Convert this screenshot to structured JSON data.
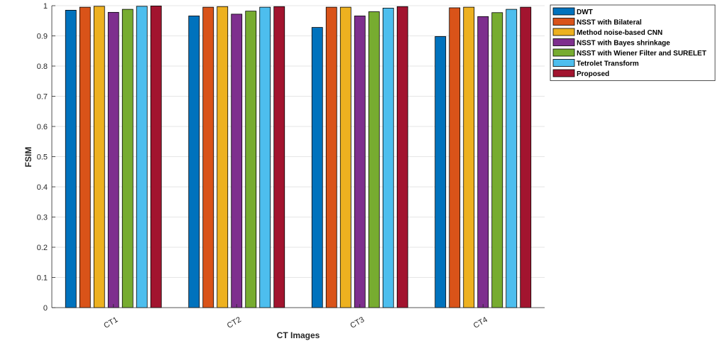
{
  "chart_data": {
    "type": "bar",
    "xlabel": "CT Images",
    "ylabel": "FSIM",
    "ylim": [
      0,
      1
    ],
    "yticks": [
      "0",
      "0.1",
      "0.2",
      "0.3",
      "0.4",
      "0.5",
      "0.6",
      "0.7",
      "0.8",
      "0.9",
      "1"
    ],
    "grid": true,
    "legend_position": "top-right-outside",
    "categories": [
      "CT1",
      "CT2",
      "CT3",
      "CT4"
    ],
    "series": [
      {
        "name": "DWT",
        "color": "#0072BD",
        "values": [
          0.985,
          0.966,
          0.928,
          0.898
        ]
      },
      {
        "name": "NSST with Bilateral",
        "color": "#D95319",
        "values": [
          0.995,
          0.995,
          0.995,
          0.993
        ]
      },
      {
        "name": "Method noise-based CNN",
        "color": "#EDB120",
        "values": [
          0.998,
          0.997,
          0.995,
          0.995
        ]
      },
      {
        "name": "NSST with Bayes shrinkage",
        "color": "#7E2F8E",
        "values": [
          0.978,
          0.972,
          0.966,
          0.964
        ]
      },
      {
        "name": "NSST with Wiener Filter and SURELET",
        "color": "#77AC30",
        "values": [
          0.988,
          0.982,
          0.98,
          0.977
        ]
      },
      {
        "name": "Tetrolet Transform",
        "color": "#4DBEEE",
        "values": [
          0.998,
          0.995,
          0.992,
          0.988
        ]
      },
      {
        "name": "Proposed",
        "color": "#A2142F",
        "values": [
          0.999,
          0.997,
          0.997,
          0.995
        ]
      }
    ]
  }
}
